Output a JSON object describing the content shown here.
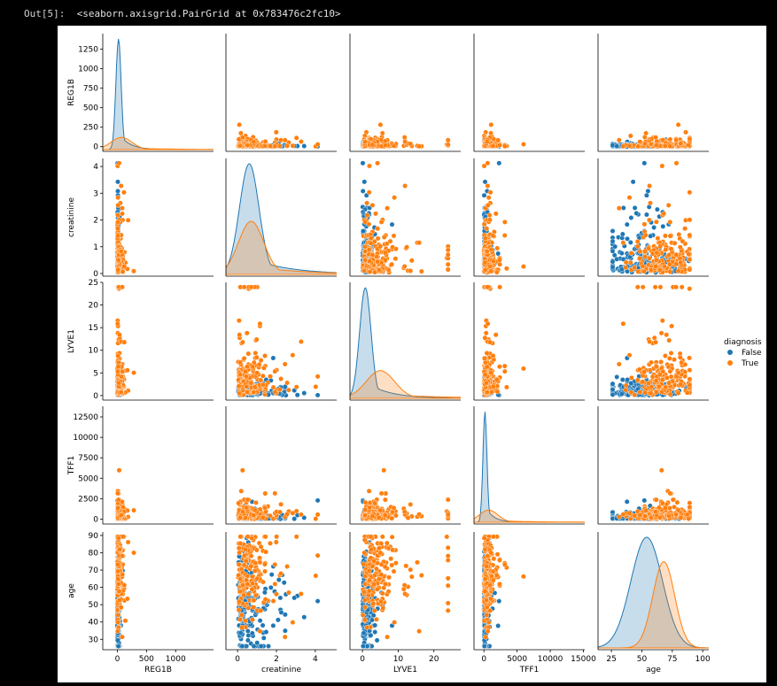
{
  "cell": {
    "prompt_label": "Out[5]:",
    "output_text": "<seaborn.axisgrid.PairGrid at 0x783476c2fc10>"
  },
  "chart_data": {
    "type": "pairplot",
    "variables": [
      "REG1B",
      "creatinine",
      "LYVE1",
      "TFF1",
      "age"
    ],
    "hue": "diagnosis",
    "legend": {
      "title": "diagnosis",
      "placement": "right",
      "entries": [
        {
          "label": "False",
          "color": "#1f77b4"
        },
        {
          "label": "True",
          "color": "#ff7f0e"
        }
      ]
    },
    "axes": {
      "REG1B": {
        "ticks": [
          0,
          500,
          1000
        ],
        "ylim": [
          -60,
          1450
        ],
        "yticks": [
          0,
          250,
          500,
          750,
          1000,
          1250
        ],
        "xlim": [
          -250,
          1650
        ]
      },
      "creatinine": {
        "ticks": [
          0,
          2,
          4
        ],
        "ylim": [
          -0.1,
          4.3
        ],
        "yticks": [
          0,
          1,
          2,
          3,
          4
        ],
        "xlim": [
          -0.6,
          5.1
        ]
      },
      "LYVE1": {
        "ticks": [
          0,
          10,
          20
        ],
        "ylim": [
          -1,
          25
        ],
        "yticks": [
          0,
          5,
          10,
          15,
          20,
          25
        ],
        "xlim": [
          -3.5,
          27.5
        ]
      },
      "TFF1": {
        "ticks": [
          0,
          5000,
          10000,
          15000
        ],
        "ylim": [
          -600,
          13800
        ],
        "yticks": [
          0,
          2500,
          5000,
          7500,
          10000,
          12500
        ],
        "xlim": [
          -1500,
          15200
        ]
      },
      "age": {
        "ticks": [
          25,
          50,
          75,
          100
        ],
        "ylim": [
          24,
          92
        ],
        "yticks": [
          30,
          40,
          50,
          60,
          70,
          80,
          90
        ],
        "xlim": [
          14,
          105
        ]
      }
    },
    "distributions": {
      "REG1B": [
        {
          "group": "False",
          "peak_at": 20,
          "spread": 45,
          "height": 1.0
        },
        {
          "group": "True",
          "peak_at": 70,
          "spread": 180,
          "height": 0.11
        }
      ],
      "creatinine": [
        {
          "group": "False",
          "peak_at": 0.6,
          "spread": 0.5,
          "height": 1.0
        },
        {
          "group": "True",
          "peak_at": 0.7,
          "spread": 0.65,
          "height": 0.48
        }
      ],
      "LYVE1": [
        {
          "group": "False",
          "peak_at": 0.8,
          "spread": 1.6,
          "height": 1.0
        },
        {
          "group": "True",
          "peak_at": 5.0,
          "spread": 4.0,
          "height": 0.25
        }
      ],
      "TFF1": [
        {
          "group": "False",
          "peak_at": 150,
          "spread": 300,
          "height": 1.0
        },
        {
          "group": "True",
          "peak_at": 700,
          "spread": 1400,
          "height": 0.11
        }
      ],
      "age": [
        {
          "group": "False",
          "peak_at": 54,
          "spread": 13,
          "height": 1.0
        },
        {
          "group": "True",
          "peak_at": 68,
          "spread": 9,
          "height": 0.78
        }
      ]
    },
    "scatter_pattern": {
      "REG1B": {
        "False": [
          10,
          150
        ],
        "True": [
          30,
          600
        ]
      },
      "creatinine": {
        "False": [
          0.6,
          1.0
        ],
        "True": [
          0.7,
          1.0
        ]
      },
      "LYVE1": {
        "False": [
          1.0,
          2.5
        ],
        "True": [
          4.5,
          5.0
        ]
      },
      "TFF1": {
        "False": [
          200,
          600
        ],
        "True": [
          600,
          2500
        ]
      },
      "age": {
        "False": [
          50,
          16
        ],
        "True": [
          68,
          14
        ]
      }
    }
  }
}
